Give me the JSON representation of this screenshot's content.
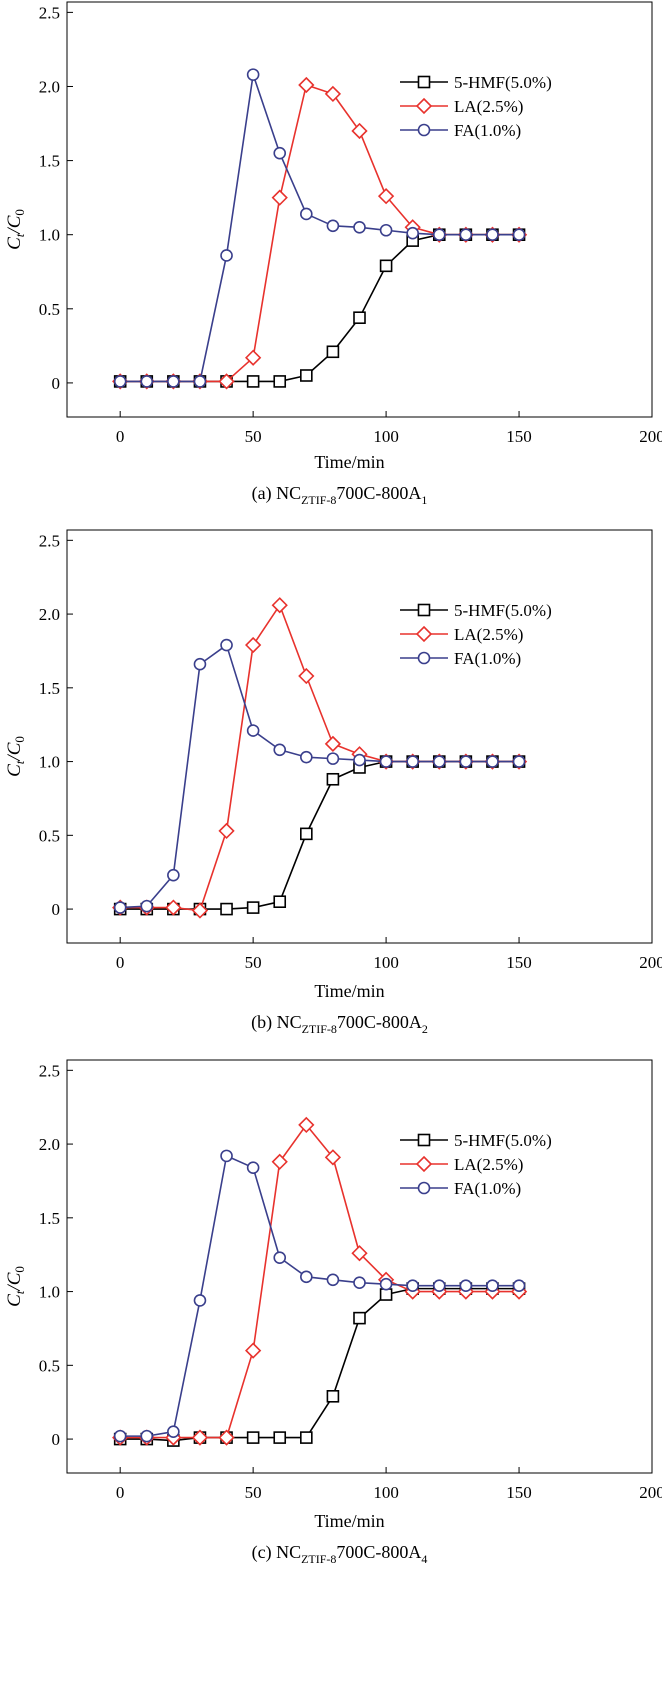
{
  "chart_data": [
    {
      "type": "line",
      "caption": {
        "prefix": "(a) NC",
        "sub": "ZTIF-8",
        "mid": "700C-800A",
        "sub2": "1"
      },
      "xlabel": "Time/min",
      "ylabel": {
        "main": "C",
        "sub_t": "t",
        "slash": "/C",
        "sub_0": "0"
      },
      "xlim": [
        -20,
        200
      ],
      "ylim": [
        -0.23,
        2.57
      ],
      "xticks": [
        "0",
        "50",
        "100",
        "150",
        "200"
      ],
      "yticks": [
        "0",
        "0.5",
        "1.0",
        "1.5",
        "2.0",
        "2.5"
      ],
      "legend_position": "top-right",
      "series": [
        {
          "name": "5-HMF(5.0%)",
          "color": "#000000",
          "marker": "square",
          "x": [
            0,
            10,
            20,
            30,
            40,
            50,
            60,
            70,
            80,
            90,
            100,
            110,
            120,
            130,
            140,
            150
          ],
          "y": [
            0.01,
            0.01,
            0.01,
            0.01,
            0.01,
            0.01,
            0.01,
            0.05,
            0.21,
            0.44,
            0.79,
            0.96,
            1.0,
            1.0,
            1.0,
            1.0
          ]
        },
        {
          "name": "LA(2.5%)",
          "color": "#e8322d",
          "marker": "diamond",
          "x": [
            0,
            10,
            20,
            30,
            40,
            50,
            60,
            70,
            80,
            90,
            100,
            110,
            120,
            130,
            140,
            150
          ],
          "y": [
            0.01,
            0.01,
            0.01,
            0.01,
            0.01,
            0.17,
            1.25,
            2.01,
            1.95,
            1.7,
            1.26,
            1.05,
            1.0,
            1.0,
            1.0,
            1.0
          ]
        },
        {
          "name": "FA(1.0%)",
          "color": "#3a3f8c",
          "marker": "circle",
          "x": [
            0,
            10,
            20,
            30,
            40,
            50,
            60,
            70,
            80,
            90,
            100,
            110,
            120,
            130,
            140,
            150
          ],
          "y": [
            0.01,
            0.01,
            0.01,
            0.01,
            0.86,
            2.08,
            1.55,
            1.14,
            1.06,
            1.05,
            1.03,
            1.01,
            1.0,
            1.0,
            1.0,
            1.0
          ]
        }
      ]
    },
    {
      "type": "line",
      "caption": {
        "prefix": "(b) NC",
        "sub": "ZTIF-8",
        "mid": "700C-800A",
        "sub2": "2"
      },
      "xlabel": "Time/min",
      "ylabel": {
        "main": "C",
        "sub_t": "t",
        "slash": "/C",
        "sub_0": "0"
      },
      "xlim": [
        -20,
        200
      ],
      "ylim": [
        -0.23,
        2.57
      ],
      "xticks": [
        "0",
        "50",
        "100",
        "150",
        "200"
      ],
      "yticks": [
        "0",
        "0.5",
        "1.0",
        "1.5",
        "2.0",
        "2.5"
      ],
      "legend_position": "top-right",
      "series": [
        {
          "name": "5-HMF(5.0%)",
          "color": "#000000",
          "marker": "square",
          "x": [
            0,
            10,
            20,
            30,
            40,
            50,
            60,
            70,
            80,
            90,
            100,
            110,
            120,
            130,
            140,
            150
          ],
          "y": [
            0.0,
            0.0,
            0.0,
            0.0,
            0.0,
            0.01,
            0.05,
            0.51,
            0.88,
            0.96,
            1.0,
            1.0,
            1.0,
            1.0,
            1.0,
            1.0
          ]
        },
        {
          "name": "LA(2.5%)",
          "color": "#e8322d",
          "marker": "diamond",
          "x": [
            0,
            10,
            20,
            30,
            40,
            50,
            60,
            70,
            80,
            90,
            100,
            110,
            120,
            130,
            140,
            150
          ],
          "y": [
            0.01,
            0.01,
            0.01,
            -0.01,
            0.53,
            1.79,
            2.06,
            1.58,
            1.12,
            1.05,
            1.0,
            1.0,
            1.0,
            1.0,
            1.0,
            1.0
          ]
        },
        {
          "name": "FA(1.0%)",
          "color": "#3a3f8c",
          "marker": "circle",
          "x": [
            0,
            10,
            20,
            30,
            40,
            50,
            60,
            70,
            80,
            90,
            100,
            110,
            120,
            130,
            140,
            150
          ],
          "y": [
            0.01,
            0.02,
            0.23,
            1.66,
            1.79,
            1.21,
            1.08,
            1.03,
            1.02,
            1.01,
            1.0,
            1.0,
            1.0,
            1.0,
            1.0,
            1.0
          ]
        }
      ]
    },
    {
      "type": "line",
      "caption": {
        "prefix": "(c) NC",
        "sub": "ZTIF-8",
        "mid": "700C-800A",
        "sub2": "4"
      },
      "xlabel": "Time/min",
      "ylabel": {
        "main": "C",
        "sub_t": "t",
        "slash": "/C",
        "sub_0": "0"
      },
      "xlim": [
        -20,
        200
      ],
      "ylim": [
        -0.23,
        2.57
      ],
      "xticks": [
        "0",
        "50",
        "100",
        "150",
        "200"
      ],
      "yticks": [
        "0",
        "0.5",
        "1.0",
        "1.5",
        "2.0",
        "2.5"
      ],
      "legend_position": "top-right",
      "series": [
        {
          "name": "5-HMF(5.0%)",
          "color": "#000000",
          "marker": "square",
          "x": [
            0,
            10,
            20,
            30,
            40,
            50,
            60,
            70,
            80,
            90,
            100,
            110,
            120,
            130,
            140,
            150
          ],
          "y": [
            0.0,
            0.0,
            -0.01,
            0.01,
            0.01,
            0.01,
            0.01,
            0.01,
            0.29,
            0.82,
            0.98,
            1.02,
            1.02,
            1.02,
            1.02,
            1.02
          ]
        },
        {
          "name": "LA(2.5%)",
          "color": "#e8322d",
          "marker": "diamond",
          "x": [
            0,
            10,
            20,
            30,
            40,
            50,
            60,
            70,
            80,
            90,
            100,
            110,
            120,
            130,
            140,
            150
          ],
          "y": [
            0.01,
            0.01,
            0.01,
            0.01,
            0.01,
            0.6,
            1.88,
            2.13,
            1.91,
            1.26,
            1.08,
            1.0,
            1.0,
            1.0,
            1.0,
            1.0
          ]
        },
        {
          "name": "FA(1.0%)",
          "color": "#3a3f8c",
          "marker": "circle",
          "x": [
            0,
            10,
            20,
            30,
            40,
            50,
            60,
            70,
            80,
            90,
            100,
            110,
            120,
            130,
            140,
            150
          ],
          "y": [
            0.02,
            0.02,
            0.05,
            0.94,
            1.92,
            1.84,
            1.23,
            1.1,
            1.08,
            1.06,
            1.05,
            1.04,
            1.04,
            1.04,
            1.04,
            1.04
          ]
        }
      ]
    }
  ]
}
